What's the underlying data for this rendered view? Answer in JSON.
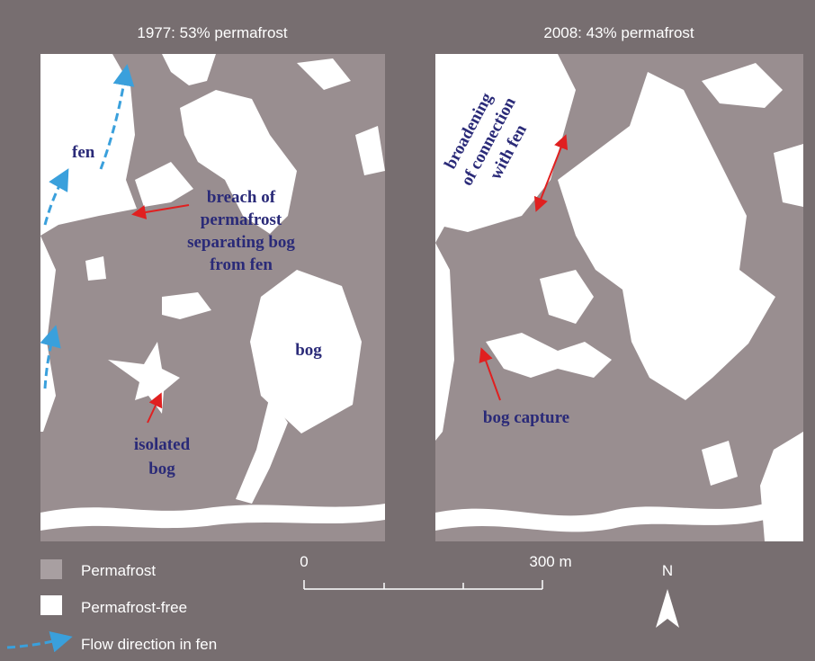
{
  "panels": [
    {
      "title": "1977: 53% permafrost",
      "annotations": [
        {
          "lines": [
            "fen"
          ]
        },
        {
          "lines": [
            "breach of",
            "permafrost",
            "separating bog",
            "from fen"
          ]
        },
        {
          "lines": [
            "bog"
          ]
        },
        {
          "lines": [
            "isolated",
            "bog"
          ]
        }
      ]
    },
    {
      "title": "2008: 43% permafrost",
      "annotations": [
        {
          "lines": [
            "broadening",
            "of connection",
            "with fen"
          ]
        },
        {
          "lines": [
            "bog capture"
          ]
        }
      ]
    }
  ],
  "legend": {
    "items": [
      "Permafrost",
      "Permafrost-free",
      "Flow direction in fen"
    ]
  },
  "scale_bar": {
    "labels": [
      "0",
      "300 m"
    ]
  },
  "north": "N"
}
